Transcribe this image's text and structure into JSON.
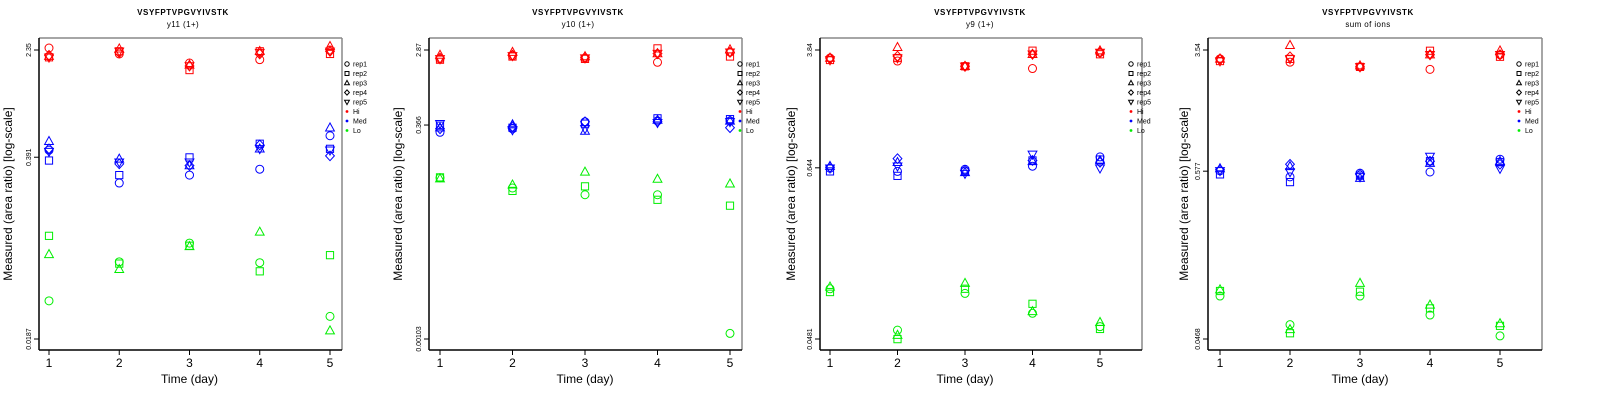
{
  "chart_data": [
    {
      "type": "scatter",
      "title": "VSYFPTVPGVYIVSTK",
      "subtitle": "y11 (1+)",
      "xlabel": "Time (day)",
      "ylabel": "Measured (area ratio) [log-scale]",
      "yscale": "log",
      "x_ticks": [
        "1",
        "2",
        "3",
        "4",
        "5"
      ],
      "y_ticks": [
        "2.35",
        "0.391",
        "0.0187"
      ],
      "ylim": [
        0.0187,
        2.35
      ],
      "legend_position": "right",
      "series": [
        {
          "name": "Hi",
          "color": "#ff0000",
          "reps": [
            [
              2.43,
              2.08,
              2.12,
              2.15,
              2.08
            ],
            [
              2.2,
              2.3,
              2.4,
              2.25,
              2.3
            ],
            [
              1.89,
              1.68,
              1.83,
              1.8,
              1.8
            ],
            [
              2.0,
              2.3,
              2.3,
              2.2,
              2.25
            ],
            [
              2.35,
              2.2,
              2.5,
              2.3,
              2.3
            ]
          ]
        },
        {
          "name": "Med",
          "color": "#0000ff",
          "reps": [
            [
              0.44,
              0.37,
              0.51,
              0.45,
              0.43
            ],
            [
              0.254,
              0.29,
              0.38,
              0.35,
              0.36
            ],
            [
              0.29,
              0.39,
              0.34,
              0.34,
              0.36
            ],
            [
              0.32,
              0.49,
              0.45,
              0.48,
              0.45
            ],
            [
              0.56,
              0.45,
              0.64,
              0.4,
              0.44
            ]
          ]
        },
        {
          "name": "Lo",
          "color": "#00ee00",
          "reps": [
            [
              0.0354,
              0.105,
              0.077
            ],
            [
              0.068,
              0.066,
              0.06
            ],
            [
              0.093,
              0.089,
              0.088
            ],
            [
              0.067,
              0.058,
              0.112
            ],
            [
              0.0273,
              0.076,
              0.0215
            ]
          ]
        }
      ]
    },
    {
      "type": "scatter",
      "title": "VSYFPTVPGVYIVSTK",
      "subtitle": "y10 (1+)",
      "xlabel": "Time (day)",
      "ylabel": "Measured (area ratio) [log-scale]",
      "yscale": "log",
      "x_ticks": [
        "1",
        "2",
        "3",
        "4",
        "5"
      ],
      "y_ticks": [
        "2.87",
        "0.366",
        "0.00103"
      ],
      "ylim": [
        0.00103,
        2.87
      ],
      "legend_position": "right",
      "series": [
        {
          "name": "Hi",
          "color": "#ff0000",
          "reps": [
            [
              2.25,
              2.2,
              2.5,
              2.3,
              2.25
            ],
            [
              2.45,
              2.4,
              2.7,
              2.5,
              2.45
            ],
            [
              2.3,
              2.25,
              2.4,
              2.35,
              2.3
            ],
            [
              2.05,
              3.0,
              2.6,
              2.6,
              2.6
            ],
            [
              2.7,
              2.4,
              2.9,
              2.7,
              2.7
            ]
          ]
        },
        {
          "name": "Med",
          "color": "#0000ff",
          "reps": [
            [
              0.3,
              0.36,
              0.34,
              0.33,
              0.38
            ],
            [
              0.33,
              0.34,
              0.37,
              0.35,
              0.32
            ],
            [
              0.4,
              0.38,
              0.31,
              0.4,
              0.33
            ],
            [
              0.41,
              0.44,
              0.42,
              0.4,
              0.39
            ],
            [
              0.41,
              0.43,
              0.41,
              0.34,
              0.4
            ]
          ]
        },
        {
          "name": "Lo",
          "color": "#00ee00",
          "reps": [
            [
              0.086,
              0.087,
              0.084
            ],
            [
              0.065,
              0.06,
              0.071
            ],
            [
              0.054,
              0.068,
              0.101
            ],
            [
              0.054,
              0.047,
              0.083
            ],
            [
              0.0012,
              0.04,
              0.073
            ]
          ]
        }
      ]
    },
    {
      "type": "scatter",
      "title": "VSYFPTVPGVYIVSTK",
      "subtitle": "y9 (1+)",
      "xlabel": "Time (day)",
      "ylabel": "Measured (area ratio) [log-scale]",
      "yscale": "log",
      "x_ticks": [
        "1",
        "2",
        "3",
        "4",
        "5"
      ],
      "y_ticks": [
        "3.84",
        "0.644",
        "0.0481"
      ],
      "ylim": [
        0.0481,
        3.84
      ],
      "legend_position": "right",
      "series": [
        {
          "name": "Hi",
          "color": "#ff0000",
          "reps": [
            [
              3.4,
              3.3,
              3.4,
              3.4,
              3.3
            ],
            [
              3.25,
              3.4,
              4.0,
              3.5,
              3.4
            ],
            [
              3.0,
              3.0,
              3.0,
              3.0,
              3.0
            ],
            [
              2.9,
              3.8,
              3.6,
              3.6,
              3.6
            ],
            [
              3.7,
              3.6,
              3.8,
              3.7,
              3.7
            ]
          ]
        },
        {
          "name": "Med",
          "color": "#0000ff",
          "reps": [
            [
              0.64,
              0.61,
              0.66,
              0.65,
              0.64
            ],
            [
              0.61,
              0.57,
              0.7,
              0.74,
              0.66
            ],
            [
              0.63,
              0.61,
              0.6,
              0.62,
              0.59
            ],
            [
              0.66,
              0.72,
              0.71,
              0.72,
              0.79
            ],
            [
              0.76,
              0.73,
              0.72,
              0.7,
              0.64
            ]
          ]
        },
        {
          "name": "Lo",
          "color": "#00ee00",
          "reps": [
            [
              0.103,
              0.098,
              0.106
            ],
            [
              0.055,
              0.048,
              0.051
            ],
            [
              0.096,
              0.103,
              0.112
            ],
            [
              0.071,
              0.082,
              0.073
            ],
            [
              0.058,
              0.056,
              0.062
            ]
          ]
        }
      ]
    },
    {
      "type": "scatter",
      "title": "VSYFPTVPGVYIVSTK",
      "subtitle": "sum of ions",
      "xlabel": "Time (day)",
      "ylabel": "Measured (area ratio) [log-scale]",
      "yscale": "log",
      "x_ticks": [
        "1",
        "2",
        "3",
        "4",
        "5"
      ],
      "y_ticks": [
        "3.54",
        "0.577",
        "0.0468"
      ],
      "ylim": [
        0.0468,
        3.54
      ],
      "legend_position": "right",
      "series": [
        {
          "name": "Hi",
          "color": "#ff0000",
          "reps": [
            [
              3.1,
              3.0,
              3.1,
              3.1,
              3.0
            ],
            [
              2.95,
              3.1,
              3.8,
              3.2,
              3.1
            ],
            [
              2.75,
              2.75,
              2.8,
              2.75,
              2.75
            ],
            [
              2.65,
              3.5,
              3.3,
              3.3,
              3.3
            ],
            [
              3.3,
              3.2,
              3.5,
              3.3,
              3.3
            ]
          ]
        },
        {
          "name": "Med",
          "color": "#0000ff",
          "reps": [
            [
              0.58,
              0.55,
              0.6,
              0.59,
              0.58
            ],
            [
              0.53,
              0.49,
              0.62,
              0.64,
              0.57
            ],
            [
              0.56,
              0.54,
              0.52,
              0.55,
              0.53
            ],
            [
              0.57,
              0.67,
              0.65,
              0.67,
              0.72
            ],
            [
              0.69,
              0.66,
              0.67,
              0.64,
              0.6
            ]
          ]
        },
        {
          "name": "Lo",
          "color": "#00ee00",
          "reps": [
            [
              0.089,
              0.096,
              0.098
            ],
            [
              0.058,
              0.051,
              0.054
            ],
            [
              0.089,
              0.095,
              0.108
            ],
            [
              0.067,
              0.074,
              0.078
            ],
            [
              0.049,
              0.057,
              0.059
            ]
          ]
        }
      ]
    }
  ],
  "legend": {
    "items": [
      {
        "label": "rep1",
        "symbol": "circle",
        "color": "#000000"
      },
      {
        "label": "rep2",
        "symbol": "square",
        "color": "#000000"
      },
      {
        "label": "rep3",
        "symbol": "triangle-up",
        "color": "#000000"
      },
      {
        "label": "rep4",
        "symbol": "diamond",
        "color": "#000000"
      },
      {
        "label": "rep5",
        "symbol": "triangle-down",
        "color": "#000000"
      },
      {
        "label": "Hi",
        "symbol": "dot",
        "color": "#ff0000"
      },
      {
        "label": "Med",
        "symbol": "dot",
        "color": "#0000ff"
      },
      {
        "label": "Lo",
        "symbol": "dot",
        "color": "#00ee00"
      }
    ]
  }
}
